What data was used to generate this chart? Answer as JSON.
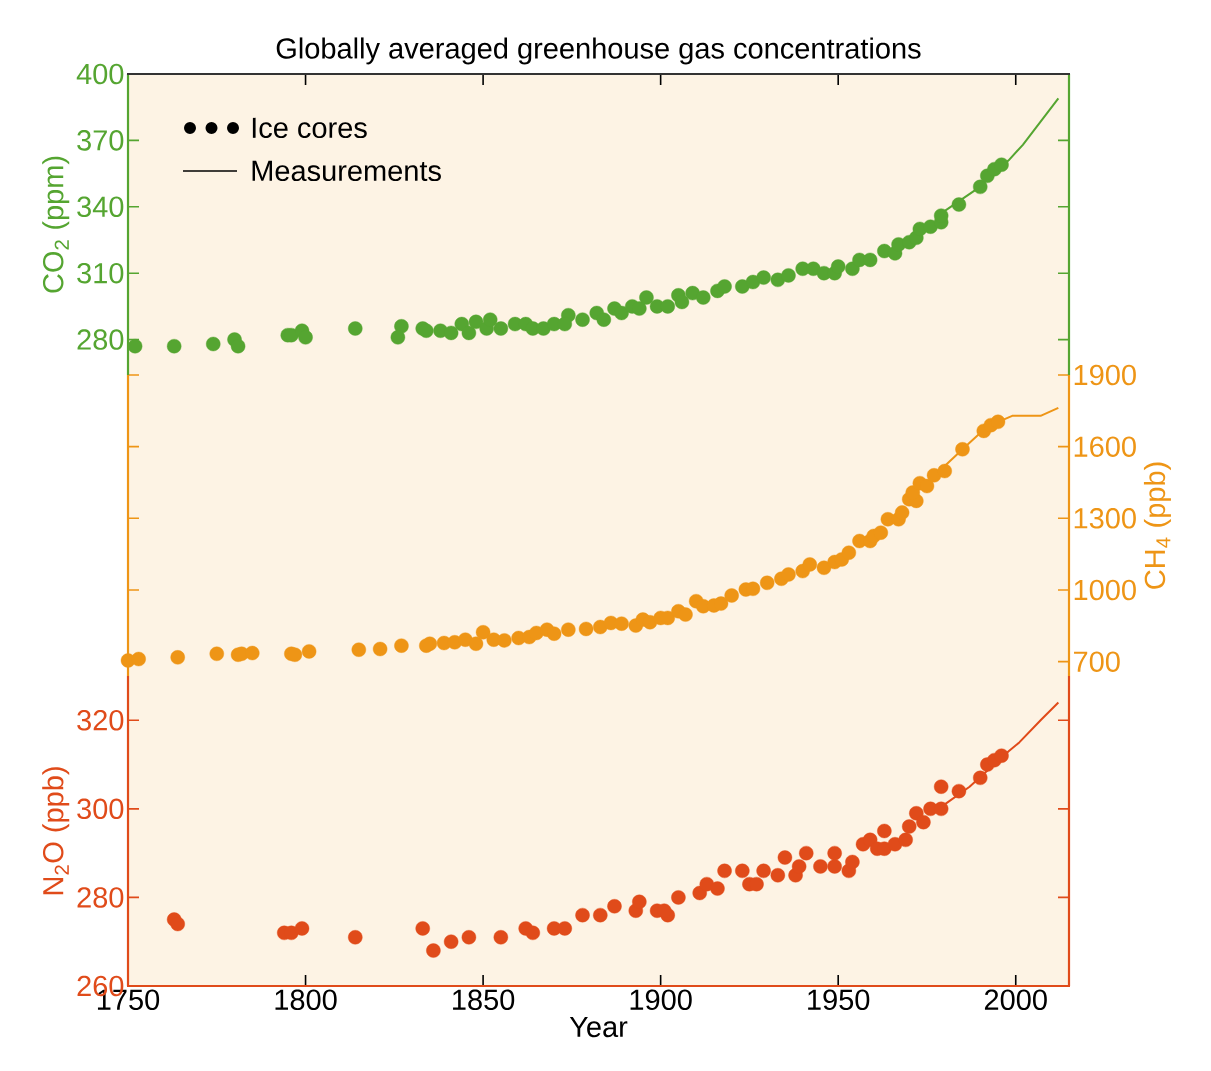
{
  "chart_data": [
    {
      "type": "scatter",
      "title": "Globally averaged greenhouse gas concentrations",
      "ylabel": "CO$_{2}$ (ppm)",
      "annotations": [
        "Ice cores",
        "Measurements"
      ],
      "tick_labels": "y",
      "xlim": [
        1750,
        2015
      ],
      "xticks": [
        1750,
        1800,
        1850,
        1900,
        1950,
        2000
      ],
      "ylim": [
        264,
        400
      ],
      "yticks": [
        280,
        310,
        340,
        370,
        400
      ],
      "series": [
        {
          "type": "scatter",
          "marker": "circle",
          "color": "#55a531",
          "x": [
            1752,
            1763,
            1774,
            1780,
            1781,
            1795,
            1796,
            1799,
            1800,
            1814,
            1827,
            1826,
            1833,
            1834,
            1838,
            1841,
            1844,
            1846,
            1848,
            1851,
            1852,
            1855,
            1859,
            1862,
            1864,
            1867,
            1870,
            1874,
            1873,
            1878,
            1882,
            1884,
            1887,
            1889,
            1892,
            1894,
            1896,
            1899,
            1902,
            1905,
            1906,
            1909,
            1912,
            1916,
            1918,
            1923,
            1926,
            1929,
            1933,
            1936,
            1940,
            1943,
            1946,
            1949,
            1950,
            1954,
            1956,
            1959,
            1963,
            1966,
            1967,
            1970,
            1972,
            1973,
            1976,
            1979,
            1979,
            1984,
            1990,
            1992,
            1994,
            1996
          ],
          "values": [
            277,
            277,
            278,
            280,
            277,
            282,
            282,
            284,
            281,
            285,
            286,
            281,
            285,
            284,
            284,
            283,
            287,
            283,
            288,
            285,
            289,
            285,
            287,
            287,
            285,
            285,
            287,
            291,
            287,
            289,
            292,
            289,
            294,
            292,
            295,
            294,
            299,
            295,
            295,
            300,
            297,
            301,
            299,
            302,
            304,
            304,
            306,
            308,
            307,
            309,
            312,
            312,
            310,
            310,
            313,
            312,
            316,
            316,
            320,
            319,
            323,
            324,
            326,
            330,
            331,
            333,
            336,
            341,
            349,
            354,
            357,
            359
          ]
        },
        {
          "type": "line",
          "color": "#55a531",
          "x": [
            1979,
            1989,
            1998,
            2002,
            2012
          ],
          "values": [
            337,
            348,
            361,
            368,
            389
          ]
        }
      ]
    },
    {
      "type": "scatter",
      "y2label": "CH$_{4}$ (ppb)",
      "tick_labels": "y2",
      "xlim": [
        1750,
        2015
      ],
      "y2lim": [
        640,
        1900
      ],
      "y2ticks": [
        700,
        1000,
        1300,
        1600,
        1900
      ],
      "series": [
        {
          "type": "scatter",
          "marker": "circle",
          "axis": "y2",
          "color": "#ee9516",
          "x": [
            1750,
            1753,
            1764,
            1775,
            1781,
            1782,
            1785,
            1796,
            1797,
            1801,
            1815,
            1821,
            1827,
            1835,
            1834,
            1839,
            1842,
            1845,
            1848,
            1850,
            1853,
            1856,
            1860,
            1863,
            1865,
            1868,
            1870,
            1874,
            1879,
            1883,
            1886,
            1889,
            1893,
            1895,
            1897,
            1900,
            1902,
            1905,
            1907,
            1910,
            1912,
            1915,
            1917,
            1920,
            1924,
            1926,
            1930,
            1934,
            1936,
            1940,
            1942,
            1946,
            1949,
            1951,
            1953,
            1956,
            1959,
            1960,
            1962,
            1964,
            1967,
            1968,
            1970,
            1972,
            1971,
            1973,
            1975,
            1977,
            1980,
            1985,
            1991,
            1993,
            1995
          ],
          "values": [
            705,
            711,
            718,
            733,
            729,
            733,
            736,
            733,
            729,
            743,
            750,
            753,
            767,
            775,
            767,
            778,
            781,
            792,
            775,
            823,
            792,
            789,
            799,
            803,
            820,
            834,
            817,
            834,
            837,
            845,
            862,
            859,
            851,
            876,
            865,
            883,
            883,
            911,
            897,
            953,
            932,
            935,
            943,
            977,
            1002,
            1005,
            1030,
            1047,
            1065,
            1079,
            1107,
            1093,
            1117,
            1128,
            1156,
            1205,
            1205,
            1226,
            1240,
            1296,
            1296,
            1324,
            1380,
            1373,
            1408,
            1447,
            1435,
            1480,
            1498,
            1589,
            1666,
            1690,
            1704
          ]
        },
        {
          "type": "line",
          "axis": "y2",
          "color": "#ee9516",
          "x": [
            1980,
            1986,
            1992,
            1999,
            2007,
            2012
          ],
          "values": [
            1519,
            1603,
            1684,
            1729,
            1729,
            1762
          ]
        }
      ]
    },
    {
      "type": "scatter",
      "xlabel": "Year",
      "ylabel": "N$_{2}$O (ppb)",
      "xlim": [
        1750,
        2015
      ],
      "xticks": [
        1750,
        1800,
        1850,
        1900,
        1950,
        2000
      ],
      "ylim": [
        260,
        330
      ],
      "yticks": [
        260,
        280,
        300,
        320
      ],
      "series": [
        {
          "type": "scatter",
          "marker": "circle",
          "color": "#e04b1a",
          "x": [
            1763,
            1764,
            1794,
            1796,
            1799,
            1814,
            1833,
            1836,
            1841,
            1846,
            1855,
            1862,
            1864,
            1870,
            1873,
            1878,
            1883,
            1887,
            1893,
            1894,
            1899,
            1902,
            1901,
            1905,
            1911,
            1913,
            1916,
            1918,
            1923,
            1925,
            1927,
            1929,
            1933,
            1935,
            1938,
            1939,
            1941,
            1945,
            1949,
            1949,
            1953,
            1954,
            1957,
            1959,
            1961,
            1963,
            1963,
            1966,
            1969,
            1970,
            1972,
            1974,
            1976,
            1979,
            1979,
            1984,
            1990,
            1992,
            1994,
            1996
          ],
          "values": [
            275,
            274,
            272,
            272,
            273,
            271,
            273,
            268,
            270,
            271,
            271,
            273,
            272,
            273,
            273,
            276,
            276,
            278,
            277,
            279,
            277,
            276,
            277,
            280,
            281,
            283,
            282,
            286,
            286,
            283,
            283,
            286,
            285,
            289,
            285,
            287,
            290,
            287,
            290,
            287,
            286,
            288,
            292,
            293,
            291,
            291,
            295,
            292,
            293,
            296,
            299,
            297,
            300,
            300,
            305,
            304,
            307,
            310,
            311,
            312
          ]
        },
        {
          "type": "line",
          "color": "#e04b1a",
          "x": [
            1980,
            1987,
            1998,
            2001,
            2007,
            2012
          ],
          "values": [
            301,
            305,
            313,
            315,
            320,
            324
          ]
        }
      ]
    }
  ]
}
